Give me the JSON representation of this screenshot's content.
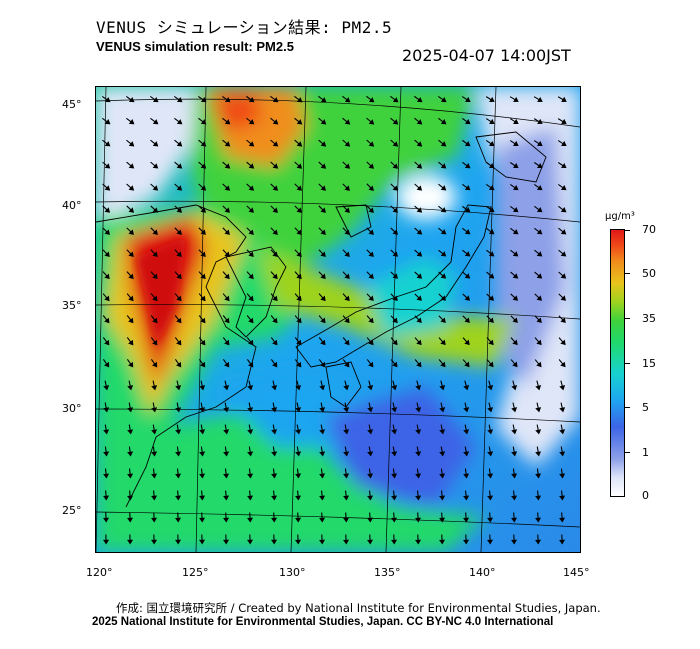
{
  "header": {
    "title_jp": "VENUS シミュレーション結果: PM2.5",
    "title_en": "VENUS simulation result: PM2.5",
    "timestamp": "2025-04-07 14:00JST"
  },
  "map": {
    "lat_labels": [
      "45°",
      "40°",
      "35°",
      "30°",
      "25°"
    ],
    "lon_labels": [
      "120°",
      "125°",
      "130°",
      "135°",
      "140°",
      "145°"
    ],
    "colors": {
      "ocean_low": "#1e9cf0",
      "clean": "#dfe6f8",
      "moderate": "#21d96a",
      "high": "#f08e1c",
      "very_high": "#e01818"
    }
  },
  "colorbar": {
    "unit": "μg/m³",
    "ticks": [
      "70",
      "50",
      "35",
      "15",
      "5",
      "1",
      "0"
    ]
  },
  "footer": {
    "credit": "作成: 国立環境研究所 / Created by National Institute for Environmental Studies, Japan.",
    "copyright": "2025 National Institute for Environmental Studies, Japan. CC BY-NC 4.0 International"
  }
}
